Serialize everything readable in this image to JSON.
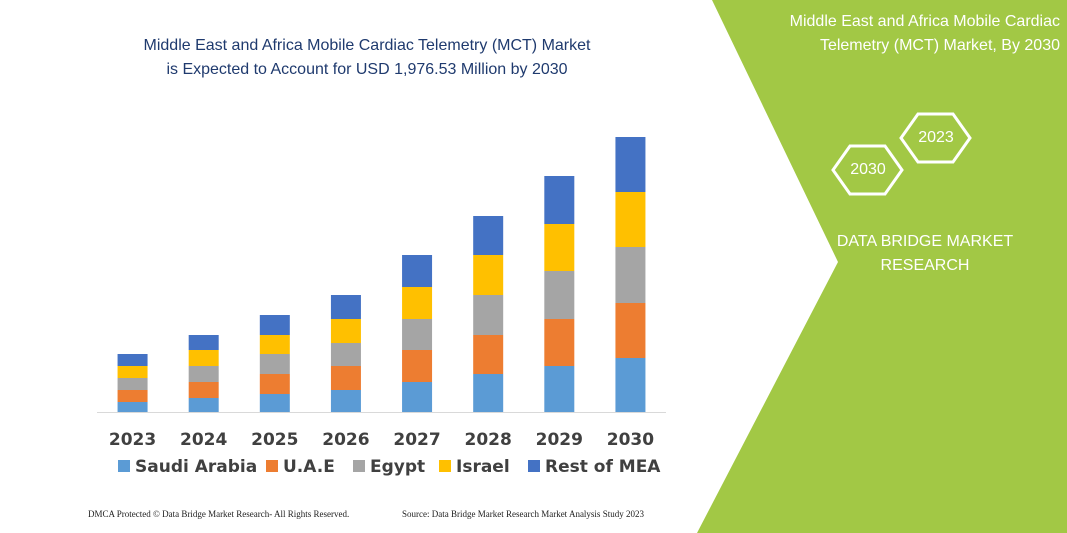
{
  "chart_data": {
    "type": "stacked-bar",
    "title": [
      "Middle East and Africa Mobile Cardiac Telemetry (MCT) Market",
      "is Expected to Account for USD 1,976.53 Million by 2030"
    ],
    "categories": [
      "2023",
      "2024",
      "2025",
      "2026",
      "2027",
      "2028",
      "2029",
      "2030"
    ],
    "ylim": [
      0,
      280
    ],
    "series": [
      {
        "name": "Saudi Arabia",
        "color": "#5b9bd5",
        "values": [
          10,
          14,
          18,
          22,
          30,
          38,
          46,
          54
        ]
      },
      {
        "name": "U.A.E",
        "color": "#ed7d31",
        "values": [
          12,
          16,
          20,
          24,
          32,
          39,
          47,
          55
        ]
      },
      {
        "name": "Egypt",
        "color": "#a5a5a5",
        "values": [
          12,
          16,
          20,
          23,
          31,
          40,
          48,
          56
        ]
      },
      {
        "name": "Israel",
        "color": "#ffc000",
        "values": [
          12,
          16,
          19,
          24,
          32,
          40,
          47,
          55
        ]
      },
      {
        "name": "Rest of MEA",
        "color": "#4472c4",
        "values": [
          12,
          15,
          20,
          24,
          32,
          39,
          48,
          55
        ]
      }
    ]
  },
  "panel": {
    "title": [
      "Middle East and Africa Mobile Cardiac",
      "Telemetry (MCT) Market, By 2030"
    ],
    "hexagons": [
      "2023",
      "2030"
    ],
    "brand": [
      "DATA BRIDGE MARKET",
      "RESEARCH"
    ]
  },
  "footer": {
    "left": "DMCA Protected © Data Bridge Market Research-  All Rights Reserved.",
    "right": "Source: Data Bridge Market Research  Market Analysis Study 2023"
  }
}
